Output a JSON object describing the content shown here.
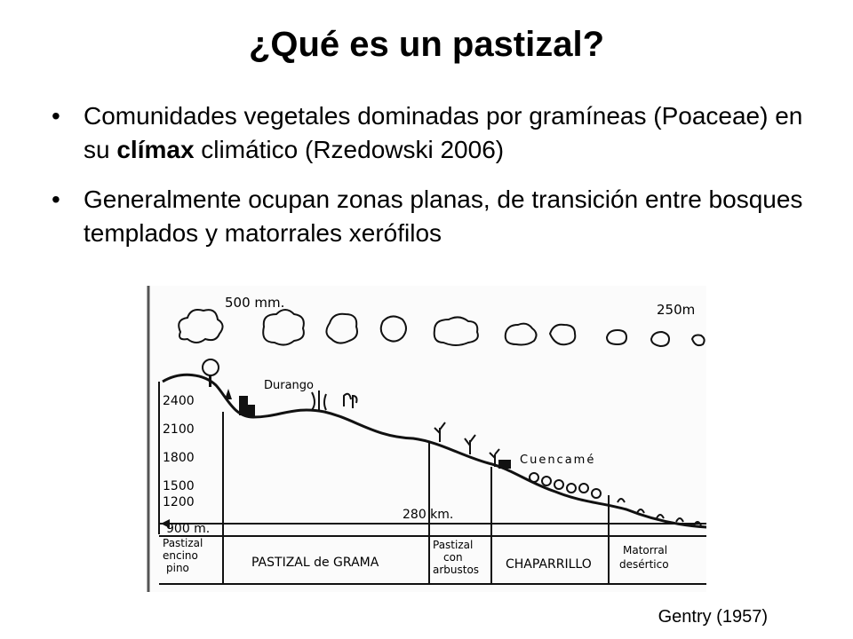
{
  "slide": {
    "title": "¿Qué es un pastizal?",
    "bullets": [
      {
        "pre": "Comunidades vegetales dominadas por gramíneas (Poaceae) en su ",
        "bold": "clímax",
        "post": " climático (Rzedowski 2006)"
      },
      {
        "text": "Generalmente ocupan zonas planas, de transición entre bosques templados y matorrales xerófilos"
      }
    ],
    "citation": "Gentry (1957)"
  },
  "figure": {
    "precip_left": "500 mm.",
    "precip_right": "250m",
    "altitudes": [
      "2400",
      "2100",
      "1800",
      "1500",
      "1200",
      "900 m."
    ],
    "distance": "280 km.",
    "places": [
      "Durango",
      "Cuencamé"
    ],
    "zones": {
      "z1": [
        "Pastizal",
        "encino",
        "pino"
      ],
      "z2": "PASTIZAL de GRAMA",
      "z3": [
        "Pastizal",
        "con",
        "arbustos"
      ],
      "z4": "CHAPARRILLO",
      "z5": [
        "Matorral",
        "desértico"
      ]
    }
  }
}
